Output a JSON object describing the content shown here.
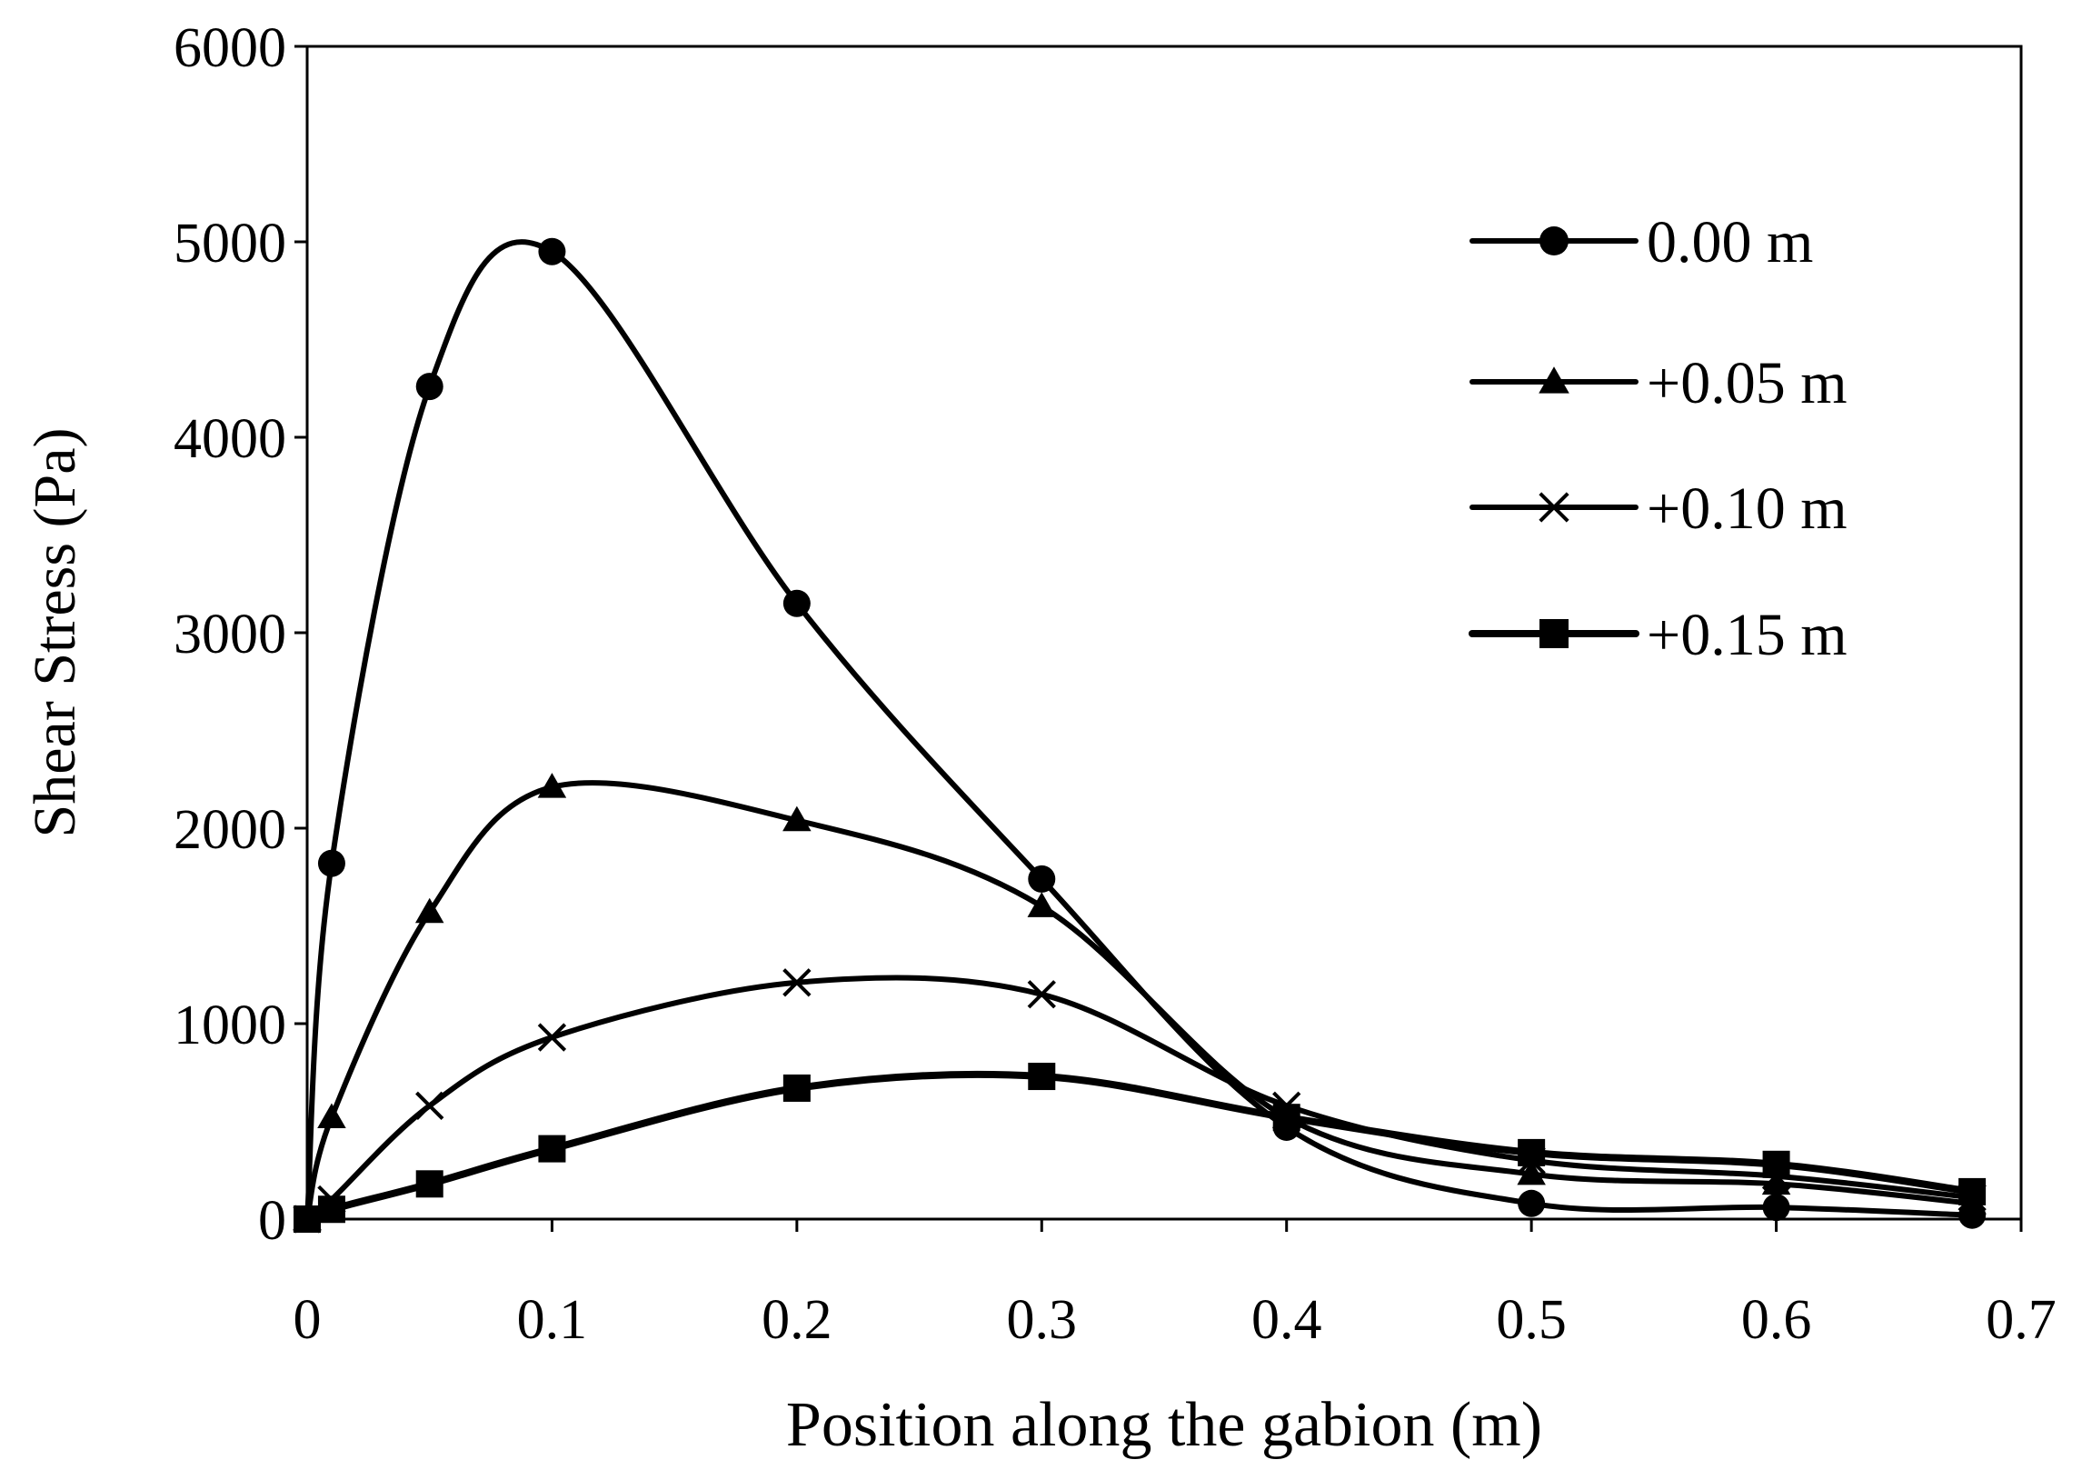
{
  "chart_data": {
    "type": "line",
    "title": "",
    "xlabel": "Position along the gabion (m)",
    "ylabel": "Shear Stress (Pa)",
    "xlim": [
      0,
      0.7
    ],
    "ylim": [
      0,
      6000
    ],
    "x_ticks": [
      0,
      0.1,
      0.2,
      0.3,
      0.4,
      0.5,
      0.6,
      0.7
    ],
    "x_tick_labels": [
      "0",
      "0.1",
      "0.2",
      "0.3",
      "0.4",
      "0.5",
      "0.6",
      "0.7"
    ],
    "y_ticks": [
      0,
      1000,
      2000,
      3000,
      4000,
      5000,
      6000
    ],
    "y_tick_labels": [
      "0",
      "1000",
      "2000",
      "3000",
      "4000",
      "5000",
      "6000"
    ],
    "grid": false,
    "legend_position": "top-right",
    "series": [
      {
        "name": "0.00 m",
        "marker": "circle",
        "points": [
          [
            0,
            0
          ],
          [
            0.01,
            1820
          ],
          [
            0.05,
            4260
          ],
          [
            0.1,
            4950
          ],
          [
            0.2,
            3150
          ],
          [
            0.3,
            1740
          ],
          [
            0.4,
            470
          ],
          [
            0.5,
            80
          ],
          [
            0.6,
            60
          ],
          [
            0.68,
            20
          ]
        ]
      },
      {
        "name": "+0.05 m",
        "marker": "triangle",
        "points": [
          [
            0,
            0
          ],
          [
            0.01,
            520
          ],
          [
            0.05,
            1570
          ],
          [
            0.1,
            2210
          ],
          [
            0.2,
            2040
          ],
          [
            0.3,
            1600
          ],
          [
            0.4,
            520
          ],
          [
            0.5,
            230
          ],
          [
            0.6,
            180
          ],
          [
            0.68,
            80
          ]
        ]
      },
      {
        "name": "+0.10 m",
        "marker": "x",
        "points": [
          [
            0,
            0
          ],
          [
            0.01,
            100
          ],
          [
            0.05,
            580
          ],
          [
            0.1,
            930
          ],
          [
            0.2,
            1210
          ],
          [
            0.3,
            1150
          ],
          [
            0.4,
            580
          ],
          [
            0.5,
            300
          ],
          [
            0.6,
            220
          ],
          [
            0.68,
            110
          ]
        ]
      },
      {
        "name": "+0.15 m",
        "marker": "square",
        "points": [
          [
            0,
            0
          ],
          [
            0.01,
            50
          ],
          [
            0.05,
            180
          ],
          [
            0.1,
            360
          ],
          [
            0.2,
            670
          ],
          [
            0.3,
            730
          ],
          [
            0.4,
            520
          ],
          [
            0.5,
            340
          ],
          [
            0.6,
            280
          ],
          [
            0.68,
            140
          ]
        ]
      }
    ]
  }
}
